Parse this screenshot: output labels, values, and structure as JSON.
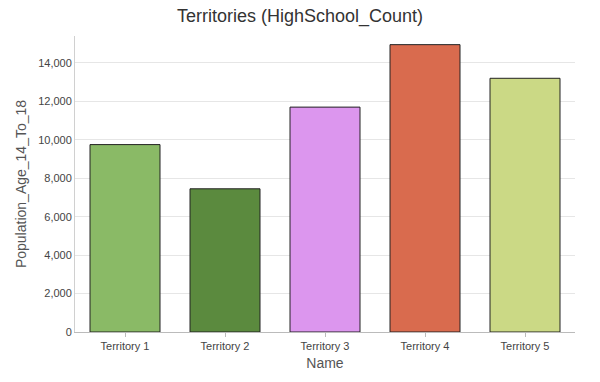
{
  "chart_data": {
    "type": "bar",
    "title": "Territories (HighSchool_Count)",
    "x_label": "Name",
    "y_label": "Population_Age_14_To_18",
    "categories": [
      "Territory 1",
      "Territory 2",
      "Territory 3",
      "Territory 4",
      "Territory 5"
    ],
    "values": [
      9750,
      7450,
      11700,
      14950,
      13200
    ],
    "colors": [
      "#8aba66",
      "#5b8a3e",
      "#dc96ee",
      "#d96b4e",
      "#cbd985"
    ],
    "ylim": [
      0,
      15400
    ],
    "yticks": [
      0,
      {
        "value": 2000,
        "label": "2,000"
      },
      {
        "value": 4000,
        "label": "4,000"
      },
      {
        "value": 6000,
        "label": "6,000"
      },
      {
        "value": 8000,
        "label": "8,000"
      },
      {
        "value": 10000,
        "label": "10,000"
      },
      {
        "value": 12000,
        "label": "12,000"
      },
      {
        "value": 14000,
        "label": "14,000"
      }
    ],
    "grid": true
  }
}
